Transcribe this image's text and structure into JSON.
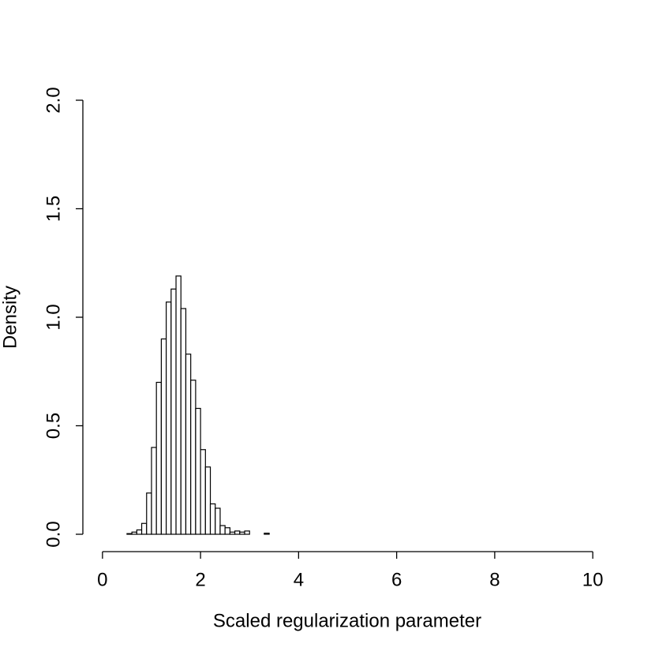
{
  "chart_data": {
    "type": "histogram",
    "xlabel": "Scaled regularization parameter",
    "ylabel": "Density",
    "bins": [
      0,
      0.1,
      0.2,
      0.3,
      0.4,
      0.5,
      0.6,
      0.7,
      0.8,
      0.9,
      1,
      1.1,
      1.2,
      1.3,
      1.4,
      1.5,
      1.6,
      1.7,
      1.8,
      1.9,
      2,
      2.1,
      2.2,
      2.3,
      2.4,
      2.5,
      2.6,
      2.7,
      2.8,
      2.9,
      3,
      3.1,
      3.2,
      3.3,
      3.4,
      3.5,
      3.6,
      3.7,
      3.8,
      3.9,
      4,
      4.1,
      4.2,
      4.3,
      4.4,
      4.5,
      4.6,
      4.7,
      4.8,
      4.9,
      5,
      5.1,
      5.2,
      5.3,
      5.4,
      5.5,
      5.6,
      5.7,
      5.8,
      5.9,
      6,
      6.1,
      6.2,
      6.3,
      6.4,
      6.5,
      6.6,
      6.7,
      6.8,
      6.9,
      7,
      7.1,
      7.2,
      7.3,
      7.4,
      7.5,
      7.6,
      7.7,
      7.8,
      7.9,
      8,
      8.1,
      8.2,
      8.3,
      8.4,
      8.5,
      8.6,
      8.7,
      8.8,
      8.9,
      9,
      9.1,
      9.2,
      9.3,
      9.4,
      9.5,
      9.6,
      9.7,
      9.8,
      9.9,
      10
    ],
    "values": [
      0,
      0,
      0,
      0,
      0,
      0.003,
      0.01,
      0.02,
      0.05,
      0.19,
      0.4,
      0.7,
      0.9,
      1.07,
      1.13,
      1.19,
      1.04,
      0.83,
      0.71,
      0.58,
      0.39,
      0.31,
      0.14,
      0.12,
      0.04,
      0.03,
      0.01,
      0.015,
      0.01,
      0.015,
      0,
      0,
      0,
      0.005,
      0,
      0,
      0,
      0,
      0,
      0,
      0,
      0,
      0,
      0,
      0,
      0,
      0,
      0,
      0,
      0,
      0,
      0,
      0,
      0,
      0,
      0,
      0,
      0,
      0,
      0,
      0,
      0,
      0,
      0,
      0,
      0,
      0,
      0,
      0,
      0,
      0,
      0,
      0,
      0,
      0,
      0,
      0,
      0,
      0,
      0,
      0,
      0,
      0,
      0,
      0,
      0,
      0,
      0,
      0,
      0,
      0,
      0,
      0,
      0,
      0,
      0,
      0,
      0,
      0,
      0
    ],
    "color": "#ffffff",
    "xlim": [
      -0.4,
      10.4
    ],
    "ylim": [
      -0.08,
      2.08
    ],
    "xticks": [
      0,
      2,
      4,
      6,
      8,
      10
    ],
    "yticks": [
      {
        "value": 0,
        "label": "0.0"
      },
      {
        "value": 0.5,
        "label": "0.5"
      },
      {
        "value": 1,
        "label": "1.0"
      },
      {
        "value": 1.5,
        "label": "1.5"
      },
      {
        "value": 2,
        "label": "2.0"
      }
    ]
  }
}
